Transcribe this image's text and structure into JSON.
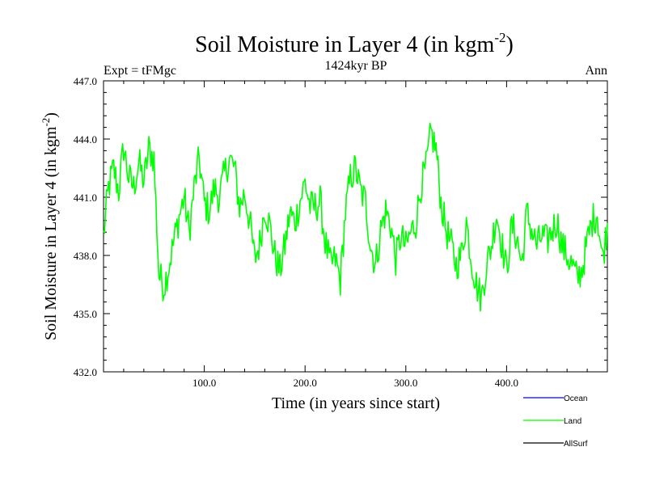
{
  "chart_data": {
    "type": "line",
    "title": "Soil Moisture in Layer 4 (in kgm",
    "title_sup": "-2",
    "title_close": ")",
    "subtitle": "1424kyr BP",
    "left_label": "Expt = tFMgc",
    "right_label": "Ann",
    "xlabel": "Time (in years since start)",
    "ylabel": "Soil Moisture in Layer 4 (in kgm",
    "ylabel_sup": "-2",
    "ylabel_close": ")",
    "xlim": [
      0,
      500
    ],
    "ylim": [
      432.0,
      447.0
    ],
    "xticks": [
      100,
      200,
      300,
      400
    ],
    "xtick_labels": [
      "100.0",
      "200.0",
      "300.0",
      "400.0"
    ],
    "yticks": [
      432,
      435,
      438,
      441,
      444,
      447
    ],
    "ytick_labels": [
      "432.0",
      "435.0",
      "438.0",
      "441.0",
      "444.0",
      "447.0"
    ],
    "legend": [
      {
        "name": "Ocean",
        "color": "#0000ff"
      },
      {
        "name": "Land",
        "color": "#00ff00"
      },
      {
        "name": "AllSurf",
        "color": "#000000"
      }
    ],
    "series": [
      {
        "name": "Land",
        "color": "#00ff00",
        "x": [
          0,
          5,
          10,
          15,
          20,
          25,
          30,
          35,
          40,
          45,
          50,
          55,
          60,
          65,
          70,
          75,
          80,
          85,
          90,
          95,
          100,
          105,
          110,
          115,
          120,
          125,
          130,
          135,
          140,
          145,
          150,
          155,
          160,
          165,
          170,
          175,
          180,
          185,
          190,
          195,
          200,
          205,
          210,
          215,
          220,
          225,
          230,
          235,
          240,
          245,
          250,
          255,
          260,
          265,
          270,
          275,
          280,
          285,
          290,
          295,
          300,
          305,
          310,
          315,
          320,
          325,
          330,
          335,
          340,
          345,
          350,
          355,
          360,
          365,
          370,
          375,
          380,
          385,
          390,
          395,
          400,
          405,
          410,
          415,
          420,
          425,
          430,
          435,
          440,
          445,
          450,
          455,
          460,
          465,
          470,
          475,
          480,
          485,
          490,
          495,
          500
        ],
        "values": [
          439.0,
          441.5,
          442.5,
          441.3,
          443.6,
          442.0,
          441.5,
          442.8,
          441.8,
          443.5,
          443.0,
          437.0,
          436.4,
          437.5,
          438.8,
          440.0,
          441.0,
          439.2,
          441.5,
          443.0,
          440.7,
          440.3,
          441.5,
          441.0,
          442.2,
          443.0,
          442.5,
          440.5,
          441.2,
          439.8,
          437.8,
          438.6,
          440.5,
          439.5,
          438.0,
          437.2,
          438.5,
          440.2,
          439.7,
          440.8,
          441.8,
          440.5,
          440.5,
          440.8,
          438.7,
          437.5,
          437.8,
          436.7,
          440.2,
          442.0,
          442.5,
          441.3,
          440.8,
          438.5,
          437.5,
          439.3,
          440.3,
          439.6,
          437.8,
          439.0,
          438.4,
          439.2,
          439.7,
          441.6,
          442.5,
          444.3,
          443.5,
          440.7,
          439.3,
          438.5,
          437.5,
          438.0,
          439.8,
          437.8,
          436.5,
          435.8,
          437.5,
          438.5,
          440.2,
          438.7,
          437.2,
          439.5,
          439.0,
          437.5,
          440.2,
          439.3,
          438.5,
          439.0,
          438.7,
          439.3,
          439.8,
          438.5,
          438.0,
          437.5,
          436.8,
          437.3,
          438.7,
          439.8,
          440.2,
          437.8,
          439.5
        ]
      }
    ]
  }
}
